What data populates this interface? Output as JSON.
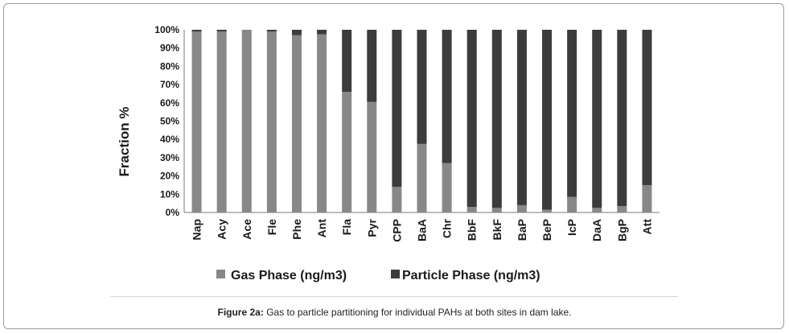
{
  "chart_data": {
    "type": "bar",
    "stacked": "percent",
    "categories": [
      "Nap",
      "Acy",
      "Ace",
      "Fle",
      "Phe",
      "Ant",
      "Fla",
      "Pyr",
      "CPP",
      "BaA",
      "Chr",
      "BbF",
      "BkF",
      "BaP",
      "BeP",
      "IcP",
      "DaA",
      "BgP",
      "Att"
    ],
    "series": [
      {
        "name": "Gas Phase (ng/m3)",
        "color": "#888888",
        "values": [
          99,
          99,
          100,
          99,
          97,
          97.5,
          66,
          60.5,
          14,
          37.5,
          27,
          3,
          2.5,
          4,
          1.5,
          8.5,
          2.5,
          3.5,
          15
        ]
      },
      {
        "name": "Particle Phase (ng/m3)",
        "color": "#3c3c3c",
        "values": [
          1,
          1,
          0,
          1,
          3,
          2.5,
          34,
          39.5,
          86,
          62.5,
          73,
          97,
          97.5,
          96,
          98.5,
          91.5,
          97.5,
          96.5,
          85
        ]
      }
    ],
    "ylabel": "Fraction %",
    "xlabel": "",
    "ylim": [
      0,
      100
    ],
    "yticks": [
      "0%",
      "10%",
      "20%",
      "30%",
      "40%",
      "50%",
      "60%",
      "70%",
      "80%",
      "90%",
      "100%"
    ],
    "legend_position": "bottom",
    "grid": false
  },
  "caption": {
    "label": "Figure 2a:",
    "text": "Gas to particle partitioning for individual PAHs at both sites in dam lake."
  }
}
